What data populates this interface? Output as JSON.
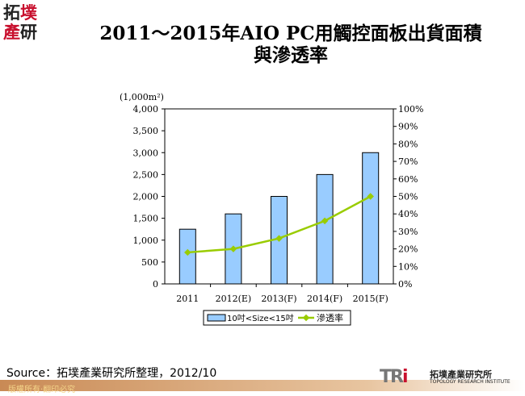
{
  "logo": {
    "text": "拓墣產研"
  },
  "title": {
    "line1": "2011～2015年AIO PC用觸控面板出貨面積",
    "line2": "與滲透率"
  },
  "source": "Source：拓墣產業研究所整理，2012/10",
  "footer": "版權所有‧翻印必究",
  "brand": {
    "mark": "TRi",
    "name": "拓墣產業研究所",
    "english": "TOPOLOGY RESEARCH INSTITUTE"
  },
  "chart_data": {
    "type": "bar",
    "categories": [
      "2011",
      "2012(E)",
      "2013(F)",
      "2014(F)",
      "2015(F)"
    ],
    "y_unit": "(1,000m²)",
    "ylim": [
      0,
      4000
    ],
    "yticks": [
      "0",
      "500",
      "1,000",
      "1,500",
      "2,000",
      "2,500",
      "3,000",
      "3,500",
      "4,000"
    ],
    "y2lim": [
      0,
      100
    ],
    "y2ticks": [
      "0%",
      "10%",
      "20%",
      "30%",
      "40%",
      "50%",
      "60%",
      "70%",
      "80%",
      "90%",
      "100%"
    ],
    "series": [
      {
        "name": "10吋<Size<15吋",
        "type": "bar",
        "axis": "left",
        "values": [
          1250,
          1600,
          2000,
          2500,
          3000
        ],
        "color": "#99ccff"
      },
      {
        "name": "滲透率",
        "type": "line",
        "axis": "right",
        "values": [
          18,
          20,
          26,
          36,
          50
        ],
        "unit": "%",
        "color": "#99cc00"
      }
    ],
    "legend": "bottom",
    "grid": false
  }
}
